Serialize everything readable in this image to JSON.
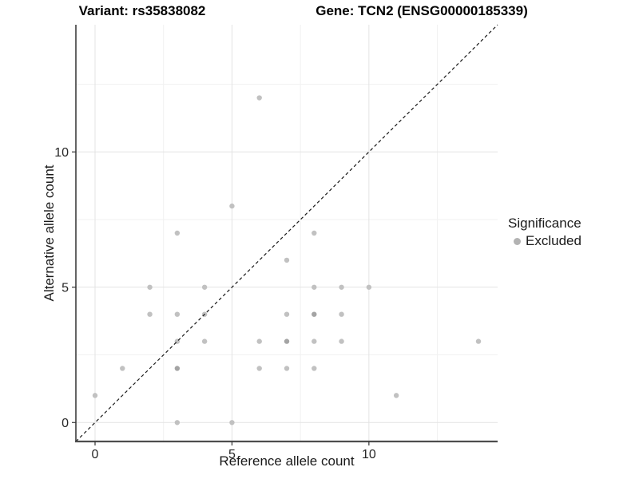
{
  "titles": {
    "variant": "Variant: rs35838082",
    "gene": "Gene: TCN2 (ENSG00000185339)"
  },
  "chart_data": {
    "type": "scatter",
    "title_left": "Variant: rs35838082",
    "title_right": "Gene: TCN2 (ENSG00000185339)",
    "xlabel": "Reference allele count",
    "ylabel": "Alternative allele count",
    "xlim": [
      -0.7,
      14.7
    ],
    "ylim": [
      -0.7,
      14.7
    ],
    "x_major_ticks": [
      0,
      5,
      10
    ],
    "y_major_ticks": [
      0,
      5,
      10
    ],
    "x_tick_labels": [
      "0",
      "5",
      "10"
    ],
    "y_tick_labels": [
      "0",
      "5",
      "10"
    ],
    "x_minor_gridlines": [
      2.5,
      7.5,
      12.5
    ],
    "y_minor_gridlines": [
      2.5,
      7.5,
      12.5
    ],
    "grid": true,
    "series": [
      {
        "name": "Excluded",
        "color": "#c1c1c1",
        "points": [
          [
            0,
            1
          ],
          [
            1,
            2
          ],
          [
            2,
            4
          ],
          [
            2,
            5
          ],
          [
            3,
            0
          ],
          [
            3,
            2
          ],
          [
            3,
            3
          ],
          [
            3,
            4
          ],
          [
            3,
            7
          ],
          [
            4,
            3
          ],
          [
            4,
            4
          ],
          [
            4,
            5
          ],
          [
            5,
            0
          ],
          [
            5,
            8
          ],
          [
            6,
            2
          ],
          [
            6,
            3
          ],
          [
            6,
            12
          ],
          [
            7,
            2
          ],
          [
            7,
            3
          ],
          [
            7,
            4
          ],
          [
            7,
            6
          ],
          [
            8,
            2
          ],
          [
            8,
            3
          ],
          [
            8,
            4
          ],
          [
            8,
            5
          ],
          [
            8,
            7
          ],
          [
            9,
            3
          ],
          [
            9,
            4
          ],
          [
            9,
            5
          ],
          [
            10,
            5
          ],
          [
            11,
            1
          ],
          [
            14,
            3
          ]
        ],
        "overlap_points": [
          [
            3,
            2
          ],
          [
            7,
            3
          ],
          [
            8,
            4
          ]
        ],
        "overlap_color": "#a4a4a4"
      }
    ],
    "identity_line": {
      "style": "dashed",
      "slope": 1,
      "intercept": 0,
      "from": [
        -0.7,
        -0.7
      ],
      "to": [
        14.7,
        14.7
      ],
      "color": "#1a1a1a"
    },
    "legend": {
      "position": "right",
      "title": "Significance",
      "entries": [
        {
          "label": "Excluded",
          "color": "#b3b3b3"
        }
      ]
    },
    "colors": {
      "background": "#ffffff",
      "grid_major": "#e3e3e3",
      "grid_minor": "#f1f1f1",
      "axis_line_left": "#222222",
      "axis_line_bottom": "#4d4d4d",
      "tick": "#333333",
      "tick_label": "#262626"
    }
  }
}
